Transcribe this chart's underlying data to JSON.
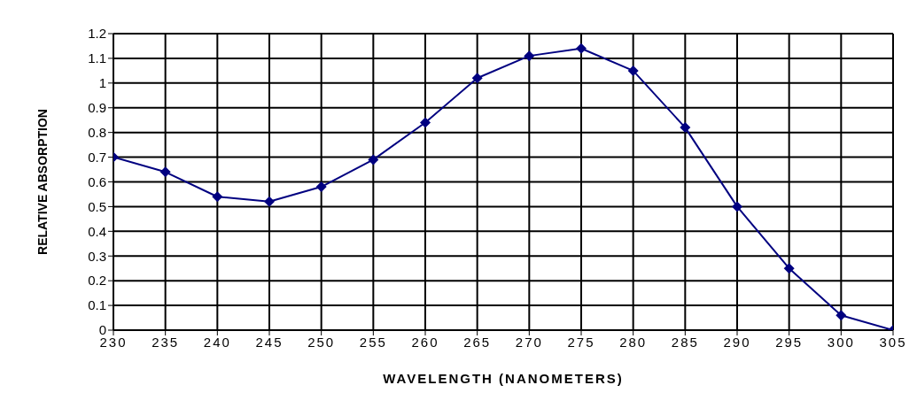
{
  "chart_data": {
    "type": "line",
    "xlabel": "WAVELENGTH (NANOMETERS)",
    "ylabel": "RELATIVE ABSORPTION",
    "x": [
      230,
      235,
      240,
      245,
      250,
      255,
      260,
      265,
      270,
      275,
      280,
      285,
      290,
      295,
      300,
      305
    ],
    "series": [
      {
        "color": "#000080",
        "values": [
          0.7,
          0.64,
          0.54,
          0.52,
          0.58,
          0.69,
          0.84,
          1.02,
          1.11,
          1.14,
          1.05,
          0.82,
          0.5,
          0.25,
          0.06,
          0.0
        ]
      }
    ],
    "xlim": [
      230,
      305
    ],
    "xticks": [
      230,
      235,
      240,
      245,
      250,
      255,
      260,
      265,
      270,
      275,
      280,
      285,
      290,
      295,
      300,
      305
    ],
    "ylim": [
      0,
      1.2
    ],
    "yticks": [
      0,
      0.1,
      0.2,
      0.3,
      0.4,
      0.5,
      0.6,
      0.7,
      0.8,
      0.9,
      1,
      1.1,
      1.2
    ],
    "grid": true,
    "marker": "diamond",
    "line_style": "solid"
  }
}
